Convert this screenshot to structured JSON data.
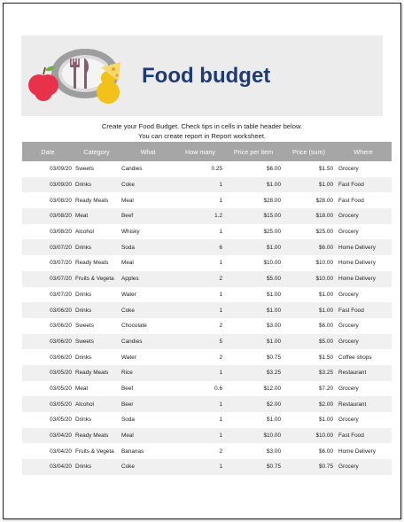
{
  "header": {
    "title": "Food budget",
    "intro_line1": "Create your Food Budget. Check tips in cells in table header below.",
    "intro_line2": "You can create report in Report worksheet."
  },
  "table": {
    "columns": [
      "Date",
      "Category",
      "What",
      "How many",
      "Price per item",
      "Price (sum)",
      "Where"
    ],
    "rows": [
      [
        "03/09/20",
        "Sweets",
        "Candies",
        "0.25",
        "$6.00",
        "$1.50",
        "Grocery"
      ],
      [
        "03/09/20",
        "Drinks",
        "Coke",
        "1",
        "$1.00",
        "$1.00",
        "Fast Food"
      ],
      [
        "03/08/20",
        "Ready Meals",
        "Meal",
        "1",
        "$28.00",
        "$28.00",
        "Fast Food"
      ],
      [
        "03/08/20",
        "Meat",
        "Beef",
        "1.2",
        "$15.00",
        "$18.00",
        "Grocery"
      ],
      [
        "03/08/20",
        "Alcohol",
        "Whisky",
        "1",
        "$25.00",
        "$25.00",
        "Grocery"
      ],
      [
        "03/07/20",
        "Drinks",
        "Soda",
        "6",
        "$1.00",
        "$6.00",
        "Home Delivery"
      ],
      [
        "03/07/20",
        "Ready Meals",
        "Meal",
        "1",
        "$10.00",
        "$10.00",
        "Home Delivery"
      ],
      [
        "03/07/20",
        "Fruits & Vegeta",
        "Apples",
        "2",
        "$5.00",
        "$10.00",
        "Home Delivery"
      ],
      [
        "03/07/20",
        "Drinks",
        "Water",
        "1",
        "$1.00",
        "$1.00",
        "Grocery"
      ],
      [
        "03/06/20",
        "Drinks",
        "Coke",
        "1",
        "$1.00",
        "$1.00",
        "Fast Food"
      ],
      [
        "03/06/20",
        "Sweets",
        "Chocolate",
        "2",
        "$3.00",
        "$6.00",
        "Grocery"
      ],
      [
        "03/06/20",
        "Sweets",
        "Candies",
        "5",
        "$1.00",
        "$5.00",
        "Grocery"
      ],
      [
        "03/06/20",
        "Drinks",
        "Water",
        "2",
        "$0.75",
        "$1.50",
        "Coffee shops"
      ],
      [
        "03/05/20",
        "Ready Meals",
        "Rice",
        "1",
        "$3.25",
        "$3.25",
        "Restaurant"
      ],
      [
        "03/05/20",
        "Meat",
        "Beef",
        "0.6",
        "$12.00",
        "$7.20",
        "Grocery"
      ],
      [
        "03/05/20",
        "Alcohol",
        "Beer",
        "1",
        "$2.00",
        "$2.00",
        "Restaurant"
      ],
      [
        "03/05/20",
        "Drinks",
        "Soda",
        "1",
        "$1.00",
        "$1.00",
        "Grocery"
      ],
      [
        "03/04/20",
        "Ready Meals",
        "Meal",
        "1",
        "$10.00",
        "$10.00",
        "Fast Food"
      ],
      [
        "03/04/20",
        "Fruits & Vegeta",
        "Bananas",
        "2",
        "$3.00",
        "$6.00",
        "Home Delivery"
      ],
      [
        "03/04/20",
        "Drinks",
        "Coke",
        "1",
        "$0.75",
        "$0.75",
        "Grocery"
      ]
    ]
  },
  "icons": {
    "illustration": "plate-with-fork-knife-apple-pear-icon",
    "apple_color": "#e8324b",
    "pear_color": "#f2c21b",
    "plate_color": "#9e9e9e",
    "cutlery_color": "#8a5a6e"
  }
}
